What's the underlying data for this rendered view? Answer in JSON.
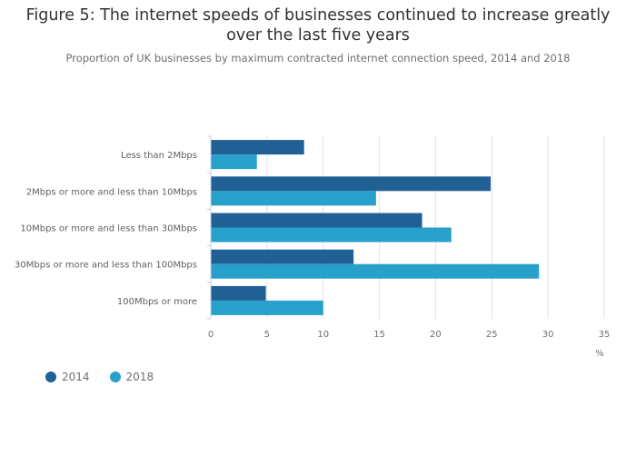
{
  "chart_data": {
    "type": "bar",
    "orientation": "horizontal",
    "title_line1": "Figure 5: The internet speeds of businesses continued to increase greatly",
    "title_line2": "over the last five years",
    "subtitle": "Proportion of UK businesses by maximum contracted internet connection speed, 2014 and 2018",
    "categories": [
      "Less than 2Mbps",
      "2Mbps or more and less than 10Mbps",
      "10Mbps or more and less than 30Mbps",
      "30Mbps or more and less than 100Mbps",
      "100Mbps or more"
    ],
    "series": [
      {
        "name": "2014",
        "color": "#206095",
        "values": [
          8.3,
          24.9,
          18.8,
          12.7,
          4.9
        ]
      },
      {
        "name": "2018",
        "color": "#27a0cc",
        "values": [
          4.1,
          14.7,
          21.4,
          29.2,
          10.0
        ]
      }
    ],
    "xlabel": "%",
    "ylabel": "",
    "xlim": [
      0,
      35
    ],
    "xticks": [
      "0",
      "5",
      "10",
      "15",
      "20",
      "25",
      "30",
      "35"
    ],
    "grid": true,
    "legend_position": "bottom-left"
  }
}
